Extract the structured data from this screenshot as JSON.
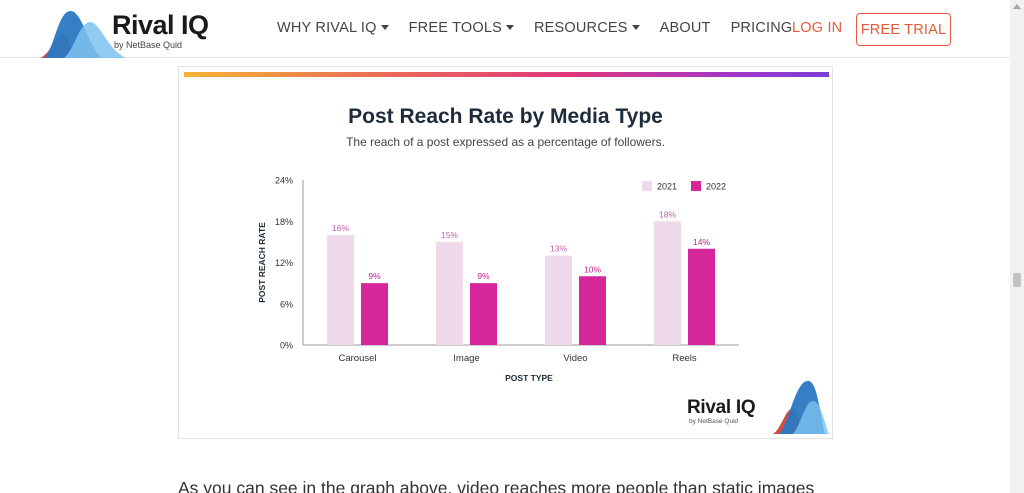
{
  "header": {
    "logo": {
      "name": "Rival IQ",
      "sub": "by NetBase Quid"
    },
    "nav": [
      {
        "label": "WHY RIVAL IQ",
        "dropdown": true
      },
      {
        "label": "FREE TOOLS",
        "dropdown": true
      },
      {
        "label": "RESOURCES",
        "dropdown": true
      },
      {
        "label": "ABOUT",
        "dropdown": false
      },
      {
        "label": "PRICING",
        "dropdown": false
      }
    ],
    "login_label": "LOG IN",
    "trial_label": "FREE TRIAL"
  },
  "figure_logo": {
    "name": "Rival IQ",
    "sub": "by NetBase Quid"
  },
  "body": {
    "paragraph": "As you can see in the graph above, video reaches more people than static images"
  },
  "colors": {
    "accent": "#e35a3a",
    "series_2021": "#eedaea",
    "series_2022": "#d6279a",
    "label_2021": "#c05fa8",
    "label_2022": "#c01f88"
  },
  "chart_data": {
    "type": "bar",
    "title": "Post Reach Rate by Media Type",
    "subtitle": "The reach of a post expressed as a percentage of followers.",
    "xlabel": "POST TYPE",
    "ylabel": "POST REACH RATE",
    "categories": [
      "Carousel",
      "Image",
      "Video",
      "Reels"
    ],
    "series": [
      {
        "name": "2021",
        "values": [
          16,
          15,
          13,
          18
        ],
        "labels": [
          "16%",
          "15%",
          "13%",
          "18%"
        ]
      },
      {
        "name": "2022",
        "values": [
          9,
          9,
          10,
          14
        ],
        "labels": [
          "9%",
          "9%",
          "10%",
          "14%"
        ]
      }
    ],
    "yticks": [
      0,
      6,
      12,
      18,
      24
    ],
    "ytick_labels": [
      "0%",
      "6%",
      "12%",
      "18%",
      "24%"
    ],
    "ylim": [
      0,
      24
    ],
    "grid": false,
    "legend": "top-right"
  }
}
